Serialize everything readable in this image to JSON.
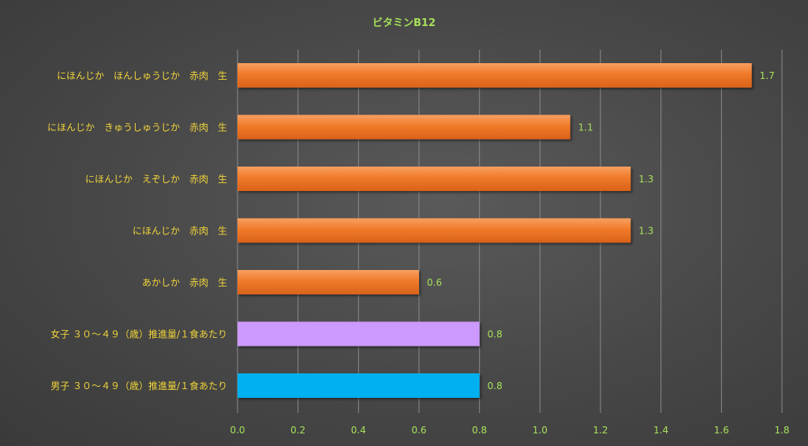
{
  "chart_data": {
    "type": "bar",
    "orientation": "horizontal",
    "title": "ビタミンB12",
    "categories": [
      "にほんじか　ほんしゅうじか　赤肉　生",
      "にほんじか　きゅうしゅうじか　赤肉　生",
      "にほんじか　えぞしか　赤肉　生",
      "にほんじか　赤肉　生",
      "あかしか　赤肉　生",
      "女子 ３０～４９（歳）推進量/１食あたり",
      "男子 ３０～４９（歳）推進量/１食あたり"
    ],
    "values": [
      1.7,
      1.1,
      1.3,
      1.3,
      0.6,
      0.8,
      0.8
    ],
    "data_labels": [
      "1.7",
      "1.1",
      "1.3",
      "1.3",
      "0.6",
      "0.8",
      "0.8"
    ],
    "bar_colors": [
      "#f07a2a",
      "#f07a2a",
      "#f07a2a",
      "#f07a2a",
      "#f07a2a",
      "#cc99ff",
      "#00b0f0"
    ],
    "xlim": [
      0,
      1.8
    ],
    "xticks": [
      "0.0",
      "0.2",
      "0.4",
      "0.6",
      "0.8",
      "1.0",
      "1.2",
      "1.4",
      "1.6",
      "1.8"
    ],
    "grid": true,
    "legend": "none",
    "colors": {
      "title": "#a6e05a",
      "category_text": "#f0d43a",
      "tick_text": "#a6e05a",
      "gridline": "#8a8a8a"
    }
  }
}
